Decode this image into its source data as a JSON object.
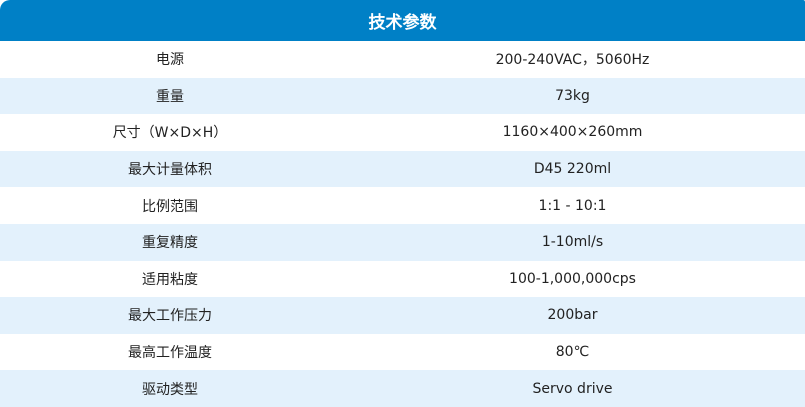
{
  "title": "技术参数",
  "rows": [
    {
      "label": "电源",
      "value": "200-240VAC，5060Hz"
    },
    {
      "label": "重量",
      "value": "73kg"
    },
    {
      "label": "尺寸（W×D×H）",
      "value": "1160×400×260mm"
    },
    {
      "label": "最大计量体积",
      "value": "D45 220ml"
    },
    {
      "label": "比例范围",
      "value": "1:1 - 10:1"
    },
    {
      "label": "重复精度",
      "value": "1-10ml/s"
    },
    {
      "label": "适用粘度",
      "value": "100-1,000,000cps"
    },
    {
      "label": "最大工作压力",
      "value": "200bar"
    },
    {
      "label": "最高工作温度",
      "value": "80℃"
    },
    {
      "label": "驱动类型",
      "value": "Servo drive"
    }
  ],
  "colors": {
    "header": "#0080c6",
    "stripe": "#e3f1fc"
  }
}
